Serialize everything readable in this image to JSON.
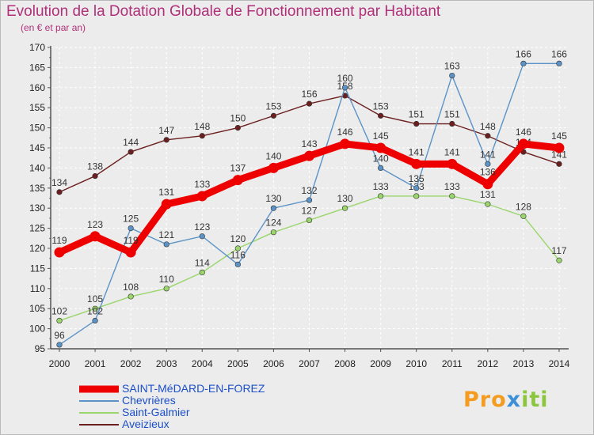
{
  "page": {
    "title": "Evolution de la Dotation Globale de Fonctionnement par Habitant",
    "subtitle": "(en € et par an)"
  },
  "logo": {
    "part1": "Pro",
    "part2": "x",
    "part3": "iti"
  },
  "chart_data": {
    "type": "line",
    "title": "Evolution de la Dotation Globale de Fonctionnement par Habitant",
    "ylabel": "(en € et par an)",
    "xlabel": "",
    "ylim": [
      95,
      170
    ],
    "yticks": [
      95,
      100,
      105,
      110,
      115,
      120,
      125,
      130,
      135,
      140,
      145,
      150,
      155,
      160,
      165,
      170
    ],
    "grid": true,
    "legend_position": "bottom-left",
    "categories": [
      "2000",
      "2001",
      "2002",
      "2003",
      "2004",
      "2005",
      "2006",
      "2007",
      "2008",
      "2009",
      "2010",
      "2011",
      "2012",
      "2013",
      "2014"
    ],
    "series": [
      {
        "name": "Aveizieux",
        "color": "#6b1f1f",
        "emphasis": false,
        "values": [
          134,
          138,
          144,
          147,
          148,
          150,
          153,
          156,
          158,
          153,
          151,
          151,
          148,
          144,
          141
        ]
      },
      {
        "name": "Saint-Galmier",
        "color": "#9ad66b",
        "emphasis": false,
        "values": [
          102,
          105,
          108,
          110,
          114,
          120,
          124,
          127,
          130,
          133,
          133,
          133,
          131,
          128,
          117
        ]
      },
      {
        "name": "Chevrières",
        "color": "#5b93c7",
        "emphasis": false,
        "values": [
          96,
          102,
          125,
          121,
          123,
          116,
          130,
          132,
          160,
          140,
          135,
          163,
          141,
          166,
          166
        ]
      },
      {
        "name": "SAINT-MéDARD-EN-FOREZ",
        "color": "#ee0000",
        "emphasis": true,
        "values": [
          119,
          123,
          119,
          131,
          133,
          137,
          140,
          143,
          146,
          145,
          141,
          141,
          136,
          146,
          145
        ]
      }
    ],
    "legend": [
      "SAINT-MéDARD-EN-FOREZ",
      "Chevrières",
      "Saint-Galmier",
      "Aveizieux"
    ]
  }
}
